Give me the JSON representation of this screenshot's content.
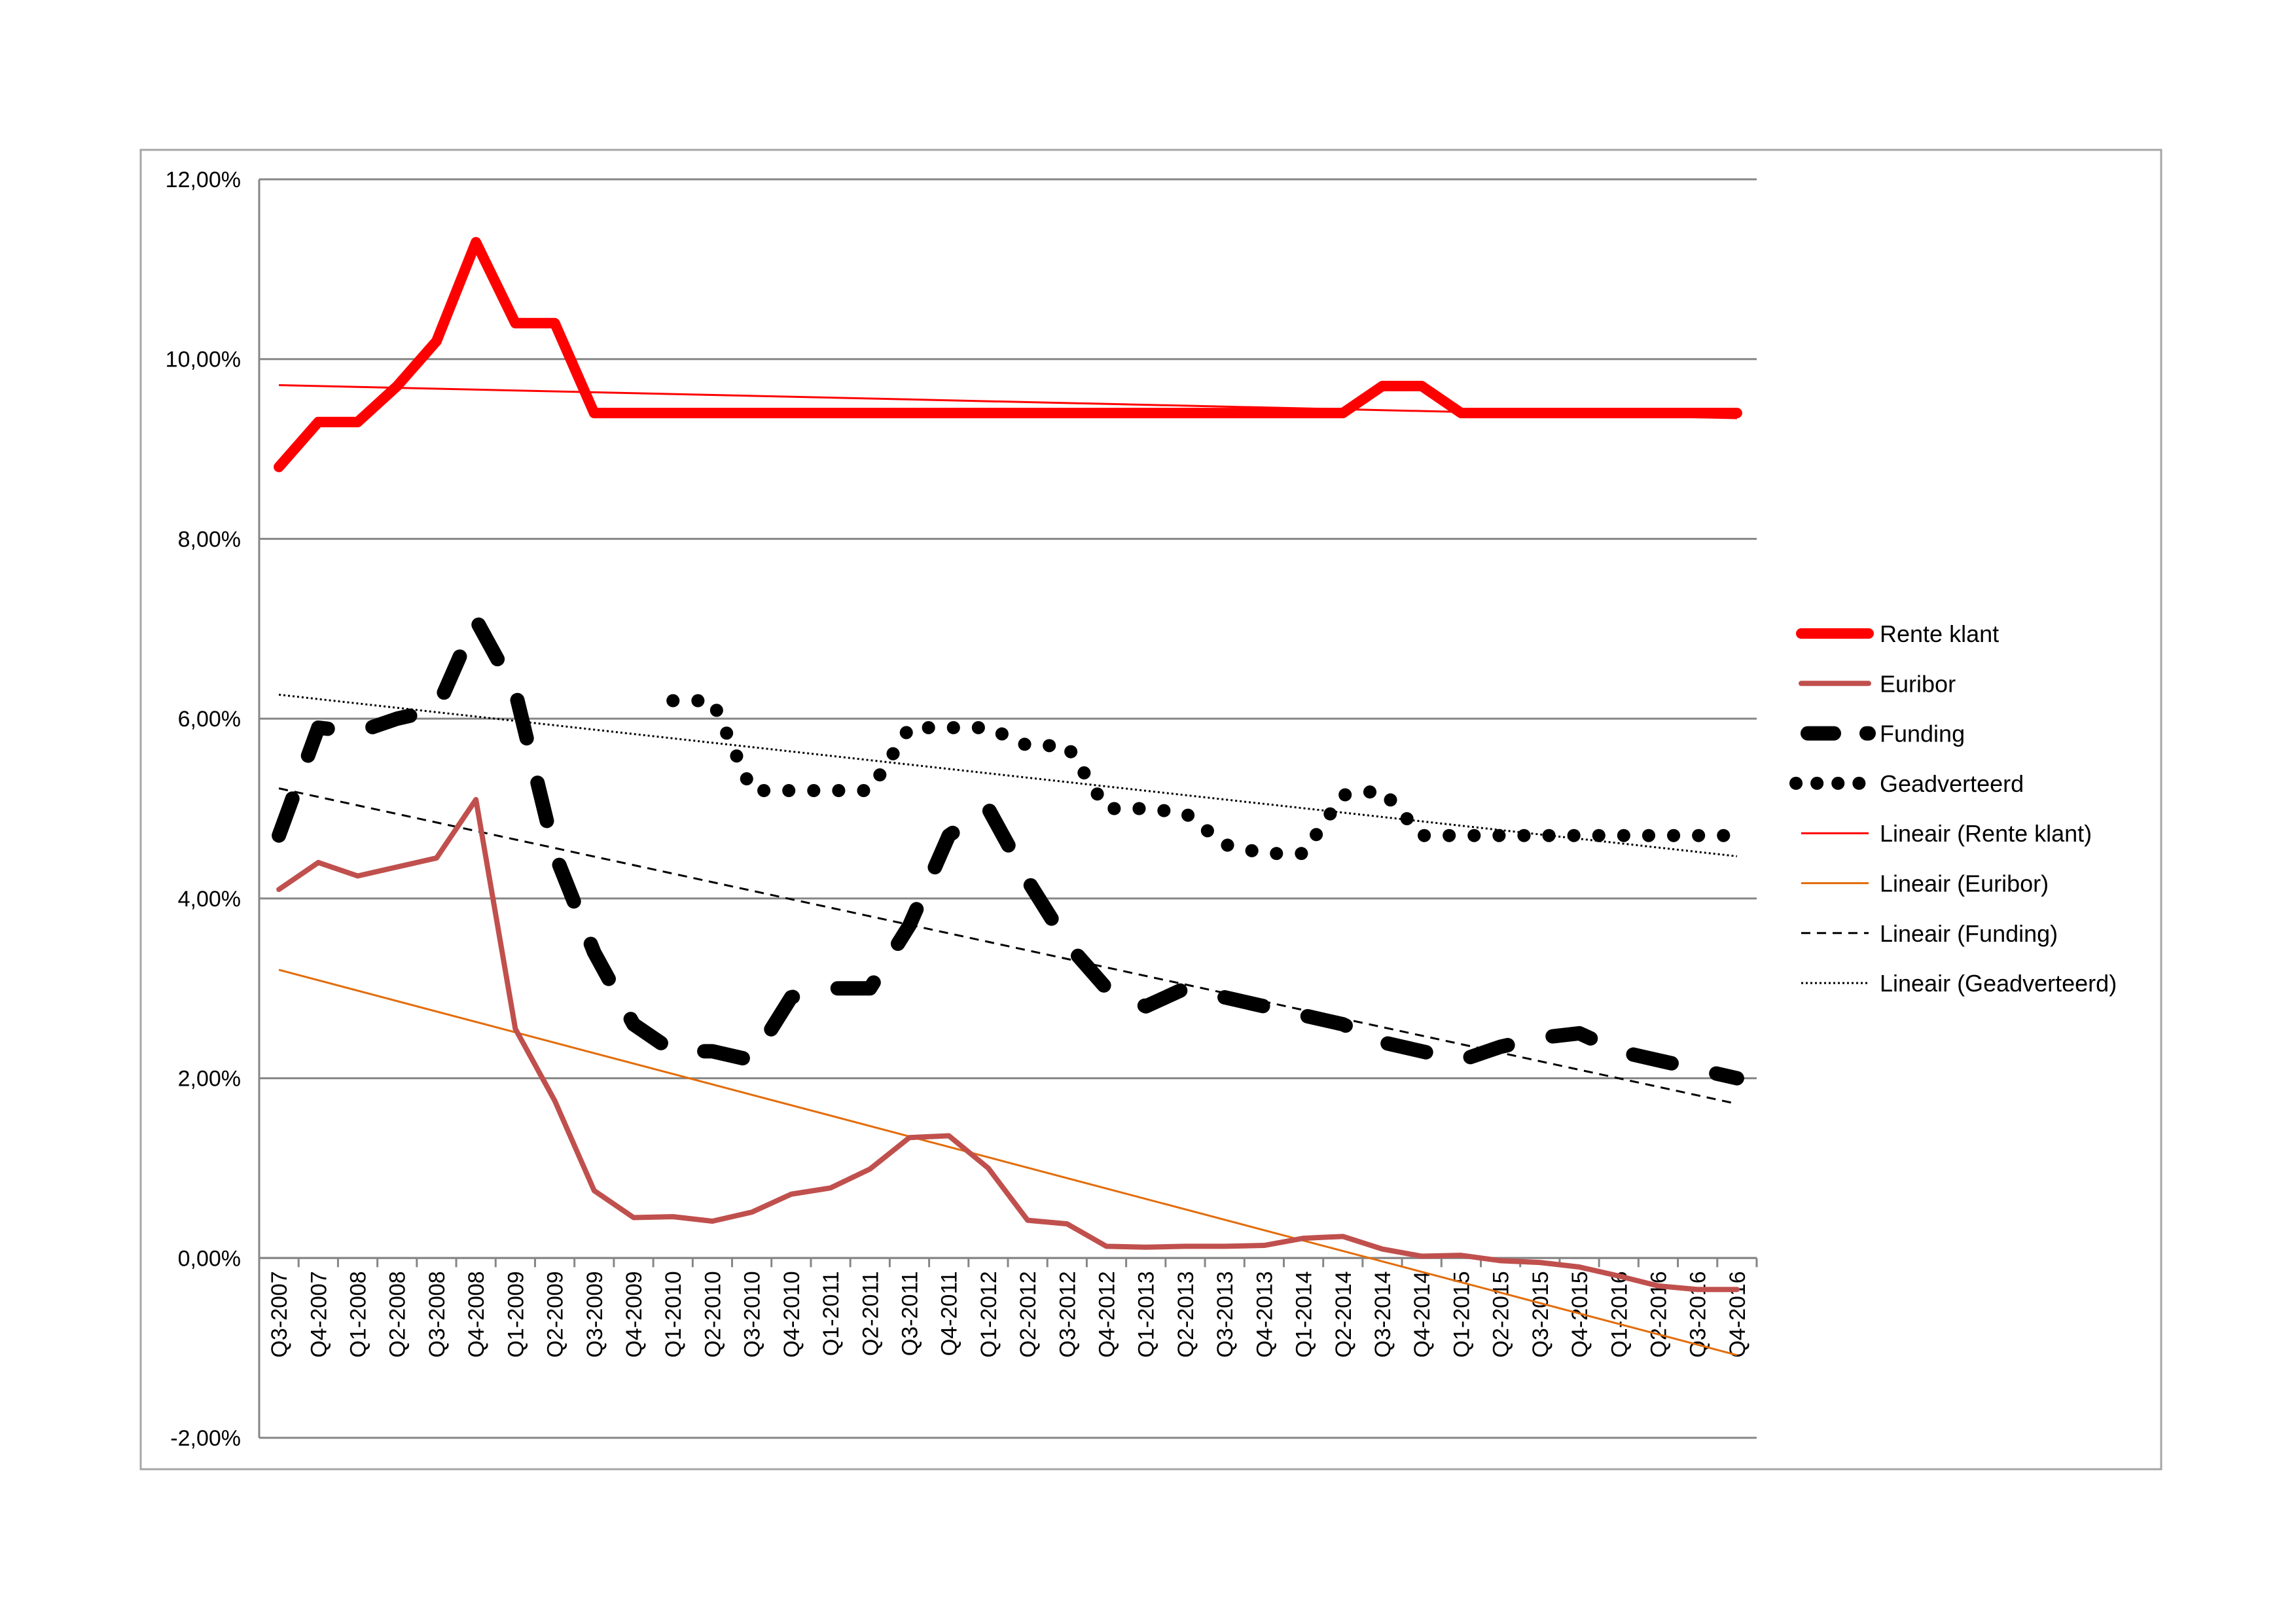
{
  "chart_data": {
    "type": "line",
    "title": "",
    "xlabel": "",
    "ylabel": "",
    "ylim": [
      -2,
      12
    ],
    "y_ticks": [
      "-2,00%",
      "0,00%",
      "2,00%",
      "4,00%",
      "6,00%",
      "8,00%",
      "10,00%",
      "12,00%"
    ],
    "y_tick_values": [
      -2,
      0,
      2,
      4,
      6,
      8,
      10,
      12
    ],
    "grid": true,
    "legend_position": "right",
    "categories": [
      "Q3-2007",
      "Q4-2007",
      "Q1-2008",
      "Q2-2008",
      "Q3-2008",
      "Q4-2008",
      "Q1-2009",
      "Q2-2009",
      "Q3-2009",
      "Q4-2009",
      "Q1-2010",
      "Q2-2010",
      "Q3-2010",
      "Q4-2010",
      "Q1-2011",
      "Q2-2011",
      "Q3-2011",
      "Q4-2011",
      "Q1-2012",
      "Q2-2012",
      "Q3-2012",
      "Q4-2012",
      "Q1-2013",
      "Q2-2013",
      "Q3-2013",
      "Q4-2013",
      "Q1-2014",
      "Q2-2014",
      "Q3-2014",
      "Q4-2014",
      "Q1-2015",
      "Q2-2015",
      "Q3-2015",
      "Q4-2015",
      "Q1-2016",
      "Q2-2016",
      "Q3-2016",
      "Q4-2016"
    ],
    "series": [
      {
        "name": "Rente klant",
        "color": "#ff0000",
        "style": "solid-thick",
        "values": [
          8.8,
          9.3,
          9.3,
          9.7,
          10.2,
          11.3,
          10.4,
          10.4,
          9.4,
          9.4,
          9.4,
          9.4,
          9.4,
          9.4,
          9.4,
          9.4,
          9.4,
          9.4,
          9.4,
          9.4,
          9.4,
          9.4,
          9.4,
          9.4,
          9.4,
          9.4,
          9.4,
          9.4,
          9.7,
          9.7,
          9.4,
          9.4,
          9.4,
          9.4,
          9.4,
          9.4,
          9.4,
          9.4
        ]
      },
      {
        "name": "Euribor",
        "color": "#c0504d",
        "style": "solid",
        "values": [
          4.1,
          4.4,
          4.25,
          4.35,
          4.45,
          5.1,
          2.55,
          1.75,
          0.75,
          0.45,
          0.46,
          0.41,
          0.51,
          0.71,
          0.78,
          0.99,
          1.34,
          1.36,
          1.0,
          0.42,
          0.38,
          0.13,
          0.12,
          0.13,
          0.13,
          0.14,
          0.22,
          0.24,
          0.1,
          0.02,
          0.03,
          -0.03,
          -0.05,
          -0.1,
          -0.2,
          -0.31,
          -0.35,
          -0.35
        ]
      },
      {
        "name": "Funding",
        "color": "#000000",
        "style": "dashed-thick",
        "values": [
          4.7,
          5.9,
          5.85,
          6.0,
          6.1,
          7.1,
          6.3,
          4.5,
          3.4,
          2.6,
          2.3,
          2.3,
          2.2,
          2.9,
          3.0,
          3.0,
          3.7,
          4.7,
          5.0,
          4.2,
          3.5,
          3.0,
          2.8,
          3.0,
          2.9,
          2.8,
          2.7,
          2.6,
          2.4,
          2.3,
          2.2,
          2.35,
          2.45,
          2.5,
          2.3,
          2.2,
          2.1,
          2.0
        ]
      },
      {
        "name": "Geadverteerd",
        "color": "#000000",
        "style": "dotted-thick",
        "values": [
          null,
          null,
          null,
          null,
          null,
          null,
          null,
          null,
          null,
          null,
          6.2,
          6.2,
          5.2,
          5.2,
          5.2,
          5.2,
          5.9,
          5.9,
          5.9,
          5.7,
          5.7,
          5.0,
          5.0,
          4.95,
          4.6,
          4.5,
          4.5,
          5.15,
          5.2,
          4.7,
          4.7,
          4.7,
          4.7,
          4.7,
          4.7,
          4.7,
          4.7,
          4.7
        ]
      }
    ],
    "trendlines": [
      {
        "name": "Lineair (Rente klant)",
        "of": "Rente klant",
        "color": "#ff0000",
        "style": "solid"
      },
      {
        "name": "Lineair (Euribor)",
        "of": "Euribor",
        "color": "#e36c09",
        "style": "solid"
      },
      {
        "name": "Lineair (Funding)",
        "of": "Funding",
        "color": "#000000",
        "style": "dashed"
      },
      {
        "name": "Lineair (Geadverteerd)",
        "of": "Geadverteerd",
        "color": "#000000",
        "style": "dotted"
      }
    ]
  }
}
